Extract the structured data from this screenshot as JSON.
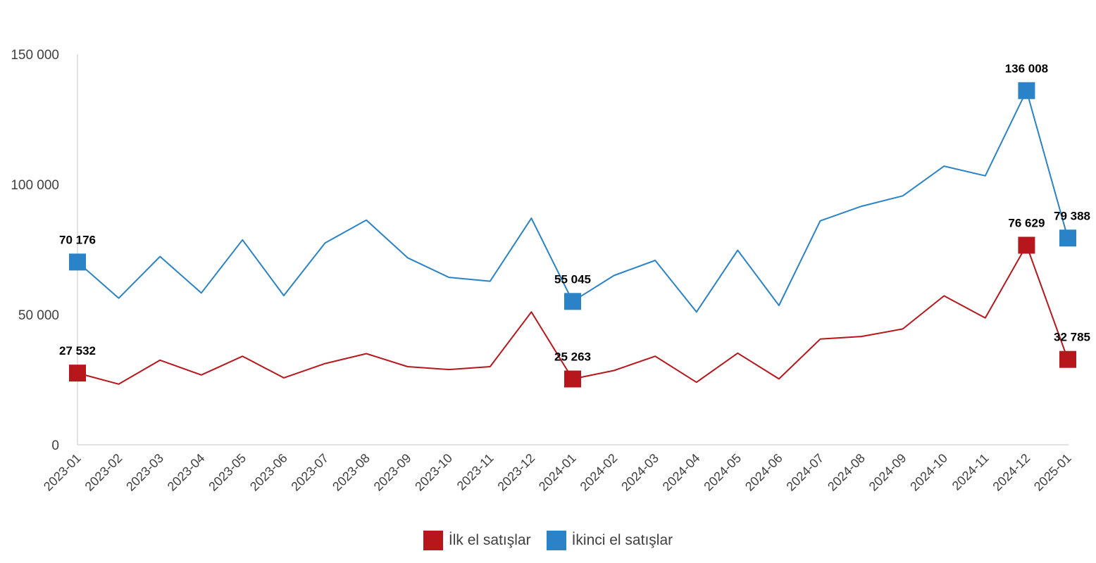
{
  "chart_data": {
    "type": "line",
    "title": "",
    "xlabel": "",
    "ylabel": "",
    "ylim": [
      0,
      150000
    ],
    "y_ticks": [
      "0",
      "50 000",
      "100 000",
      "150 000"
    ],
    "y_tick_values": [
      0,
      50000,
      100000,
      150000
    ],
    "grid": false,
    "legend_position": "bottom",
    "x": [
      "2023-01",
      "2023-02",
      "2023-03",
      "2023-04",
      "2023-05",
      "2023-06",
      "2023-07",
      "2023-08",
      "2023-09",
      "2023-10",
      "2023-11",
      "2023-12",
      "2024-01",
      "2024-02",
      "2024-03",
      "2024-04",
      "2024-05",
      "2024-06",
      "2024-07",
      "2024-08",
      "2024-09",
      "2024-10",
      "2024-11",
      "2024-12",
      "2025-01"
    ],
    "series": [
      {
        "name": "İlk el satışlar",
        "color": "#b7161c",
        "values": [
          27532,
          23300,
          32500,
          26800,
          34000,
          25700,
          31200,
          35000,
          30000,
          28900,
          30000,
          51000,
          25263,
          28500,
          34000,
          24000,
          35200,
          25300,
          40600,
          41600,
          44500,
          57200,
          48700,
          76629,
          32785
        ],
        "labeled_points": [
          {
            "index": 0,
            "label": "27 532"
          },
          {
            "index": 12,
            "label": "25 263"
          },
          {
            "index": 23,
            "label": "76 629"
          },
          {
            "index": 24,
            "label": "32 785"
          }
        ]
      },
      {
        "name": "İkinci el satışlar",
        "color": "#2a83c6",
        "values": [
          70176,
          56300,
          72300,
          58300,
          78700,
          57300,
          77500,
          86300,
          71800,
          64300,
          62800,
          87000,
          55045,
          65000,
          70800,
          51000,
          74700,
          53500,
          86000,
          91600,
          95600,
          107000,
          103300,
          136008,
          79388
        ],
        "labeled_points": [
          {
            "index": 0,
            "label": "70 176"
          },
          {
            "index": 12,
            "label": "55 045"
          },
          {
            "index": 23,
            "label": "136 008"
          },
          {
            "index": 24,
            "label": "79 388"
          }
        ]
      }
    ]
  }
}
